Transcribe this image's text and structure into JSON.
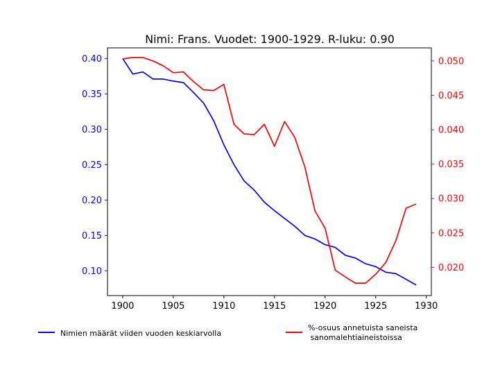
{
  "chart_data": {
    "type": "line",
    "title": "Nimi: Frans. Vuodet: 1900-1929. R-luku: 0.90",
    "x": [
      1900,
      1901,
      1902,
      1903,
      1904,
      1905,
      1906,
      1907,
      1908,
      1909,
      1910,
      1911,
      1912,
      1913,
      1914,
      1915,
      1916,
      1917,
      1918,
      1919,
      1920,
      1921,
      1922,
      1923,
      1924,
      1925,
      1926,
      1927,
      1928,
      1929
    ],
    "xlim": [
      1898.5,
      1930.5
    ],
    "x_ticks": [
      1900,
      1905,
      1910,
      1915,
      1920,
      1925,
      1930
    ],
    "left_axis": {
      "ylim": [
        0.065,
        0.415
      ],
      "ticks": [
        0.1,
        0.15,
        0.2,
        0.25,
        0.3,
        0.35,
        0.4
      ],
      "tick_labels": [
        "0.10",
        "0.15",
        "0.20",
        "0.25",
        "0.30",
        "0.35",
        "0.40"
      ],
      "color": "#0000ff"
    },
    "right_axis": {
      "ylim": [
        0.0159,
        0.0519
      ],
      "ticks": [
        0.02,
        0.025,
        0.03,
        0.035,
        0.04,
        0.045,
        0.05
      ],
      "tick_labels": [
        "0.020",
        "0.025",
        "0.030",
        "0.035",
        "0.040",
        "0.045",
        "0.050"
      ],
      "color": "#ff0000"
    },
    "series": [
      {
        "name": "Nimien määrät viiden vuoden keskiarvolla",
        "axis": "left",
        "color": "#0000ff",
        "values": [
          0.4,
          0.378,
          0.381,
          0.371,
          0.371,
          0.368,
          0.366,
          0.352,
          0.337,
          0.312,
          0.278,
          0.25,
          0.227,
          0.214,
          0.197,
          0.185,
          0.174,
          0.163,
          0.15,
          0.145,
          0.137,
          0.133,
          0.122,
          0.118,
          0.11,
          0.106,
          0.098,
          0.096,
          0.088,
          0.08
        ]
      },
      {
        "name": "%-osuus annetuista saneista\n sanomalehtiaineistoissa",
        "axis": "right",
        "color": "#ff0000",
        "values": [
          0.0503,
          0.0505,
          0.0505,
          0.05,
          0.0493,
          0.0483,
          0.0484,
          0.047,
          0.0458,
          0.0457,
          0.0466,
          0.0408,
          0.0394,
          0.0393,
          0.0408,
          0.0376,
          0.0412,
          0.0389,
          0.0346,
          0.0282,
          0.0257,
          0.0196,
          0.0186,
          0.0177,
          0.0177,
          0.019,
          0.0207,
          0.0239,
          0.0286,
          0.0292
        ]
      }
    ],
    "grid": false,
    "legend_placement": "bottom"
  }
}
